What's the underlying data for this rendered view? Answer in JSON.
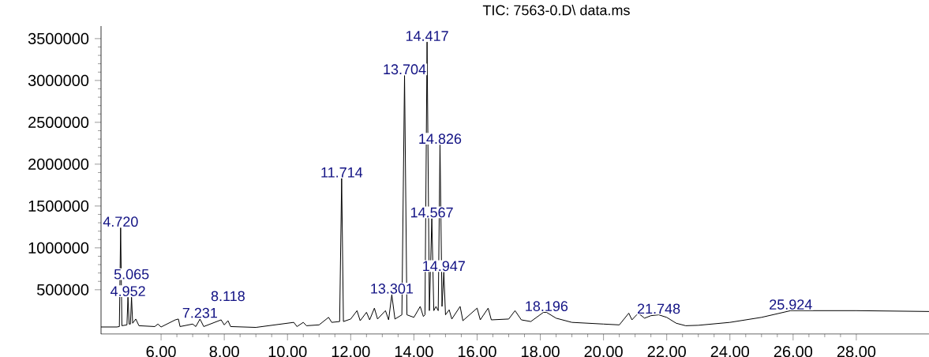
{
  "chart_data": {
    "type": "line",
    "title": "TIC: 7563-0.D\\ data.ms",
    "color": "#000000",
    "x": [
      4.1,
      4.6,
      4.68,
      4.72,
      4.76,
      4.92,
      4.952,
      4.99,
      5.03,
      5.065,
      5.1,
      5.2,
      5.3,
      5.8,
      5.9,
      6.0,
      6.45,
      6.548,
      6.6,
      7.0,
      7.1,
      7.231,
      7.35,
      7.9,
      8.0,
      8.118,
      8.2,
      9.0,
      10.2,
      10.3,
      10.5,
      10.6,
      11.0,
      11.3,
      11.4,
      11.65,
      11.714,
      11.77,
      12.0,
      12.2,
      12.3,
      12.5,
      12.6,
      12.75,
      12.85,
      13.1,
      13.2,
      13.301,
      13.4,
      13.62,
      13.704,
      13.78,
      14.0,
      14.2,
      14.3,
      14.35,
      14.417,
      14.49,
      14.567,
      14.63,
      14.7,
      14.77,
      14.826,
      14.89,
      14.947,
      15.0,
      15.116,
      15.2,
      15.463,
      15.55,
      16.0,
      16.1,
      16.35,
      16.45,
      17.0,
      17.2,
      17.4,
      17.7,
      18.1,
      18.196,
      18.5,
      19.0,
      20.0,
      20.5,
      20.8,
      20.9,
      21.1,
      21.3,
      21.5,
      21.748,
      22.0,
      22.3,
      22.6,
      23.0,
      24.0,
      25.0,
      25.924,
      26.2,
      28.0,
      30.3
    ],
    "values": [
      55000,
      55000,
      60000,
      1240000,
      70000,
      80000,
      410000,
      90000,
      90000,
      410000,
      100000,
      150000,
      70000,
      60000,
      90000,
      55000,
      140000,
      150000,
      60000,
      90000,
      60000,
      150000,
      60000,
      140000,
      80000,
      130000,
      60000,
      50000,
      110000,
      60000,
      110000,
      70000,
      80000,
      170000,
      110000,
      120000,
      1830000,
      120000,
      150000,
      250000,
      130000,
      230000,
      140000,
      280000,
      150000,
      250000,
      140000,
      440000,
      150000,
      200000,
      3060000,
      200000,
      170000,
      300000,
      180000,
      200000,
      3460000,
      250000,
      1350000,
      250000,
      300000,
      250000,
      2230000,
      300000,
      710000,
      200000,
      260000,
      150000,
      300000,
      130000,
      280000,
      140000,
      280000,
      140000,
      150000,
      250000,
      140000,
      120000,
      230000,
      230000,
      160000,
      110000,
      90000,
      80000,
      220000,
      140000,
      220000,
      160000,
      190000,
      200000,
      170000,
      100000,
      70000,
      75000,
      110000,
      170000,
      250000,
      250000,
      250000,
      240000
    ],
    "xlim": [
      4.1,
      30.3
    ],
    "ylim": [
      -30000,
      3650000
    ],
    "xticks": [
      {
        "value": 6,
        "label": "6.00"
      },
      {
        "value": 8,
        "label": "8.00"
      },
      {
        "value": 10,
        "label": "10.00"
      },
      {
        "value": 12,
        "label": "12.00"
      },
      {
        "value": 14,
        "label": "14.00"
      },
      {
        "value": 16,
        "label": "16.00"
      },
      {
        "value": 18,
        "label": "18.00"
      },
      {
        "value": 20,
        "label": "20.00"
      },
      {
        "value": 22,
        "label": "22.00"
      },
      {
        "value": 24,
        "label": "24.00"
      },
      {
        "value": 26,
        "label": "26.00"
      },
      {
        "value": 28,
        "label": "28.00"
      }
    ],
    "yticks": [
      500000,
      1000000,
      1500000,
      2000000,
      2500000,
      3000000,
      3500000
    ],
    "annotations": [
      {
        "text": "4.720",
        "x": 4.72,
        "y": 1240000
      },
      {
        "text": "4.952",
        "x": 4.952,
        "y": 410000
      },
      {
        "text": "5.065",
        "x": 5.065,
        "y": 410000
      },
      {
        "text": "7.231",
        "x": 7.231,
        "y": 150000
      },
      {
        "text": "8.118",
        "x": 8.118,
        "y": 130000
      },
      {
        "text": "11.714",
        "x": 11.714,
        "y": 1830000
      },
      {
        "text": "13.301",
        "x": 13.301,
        "y": 440000
      },
      {
        "text": "13.704",
        "x": 13.704,
        "y": 3060000
      },
      {
        "text": "14.417",
        "x": 14.417,
        "y": 3460000
      },
      {
        "text": "14.567",
        "x": 14.567,
        "y": 1350000
      },
      {
        "text": "14.826",
        "x": 14.826,
        "y": 2230000
      },
      {
        "text": "14.947",
        "x": 14.947,
        "y": 710000
      },
      {
        "text": "18.196",
        "x": 18.196,
        "y": 230000
      },
      {
        "text": "21.748",
        "x": 21.748,
        "y": 200000
      },
      {
        "text": "25.924",
        "x": 25.924,
        "y": 250000
      }
    ]
  }
}
